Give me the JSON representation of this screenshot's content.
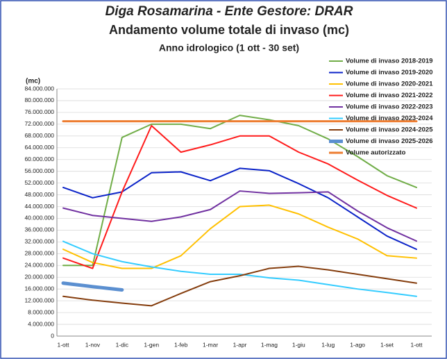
{
  "chart_data": {
    "type": "line",
    "title": "Diga Rosamarina - Ente Gestore: DRAR",
    "subtitle": "Andamento volume totale di invaso (mc)",
    "subtitle2": "Anno idrologico (1 ott - 30 set)",
    "y_label": "(mc)",
    "categories": [
      "1-ott",
      "1-nov",
      "1-dic",
      "1-gen",
      "1-feb",
      "1-mar",
      "1-apr",
      "1-mag",
      "1-giu",
      "1-lug",
      "1-ago",
      "1-set",
      "1-ott"
    ],
    "ylim": [
      0,
      84000000
    ],
    "yticks": [
      0,
      {
        "value": 4000000,
        "label": "4.000.000"
      },
      {
        "value": 8000000,
        "label": "8.000.000"
      },
      {
        "value": 12000000,
        "label": "12.000.000"
      },
      {
        "value": 16000000,
        "label": "16.000.000"
      },
      {
        "value": 20000000,
        "label": "20.000.000"
      },
      {
        "value": 24000000,
        "label": "24.000.000"
      },
      {
        "value": 28000000,
        "label": "28.000.000"
      },
      {
        "value": 32000000,
        "label": "32.000.000"
      },
      {
        "value": 36000000,
        "label": "36.000.000"
      },
      {
        "value": 40000000,
        "label": "40.000.000"
      },
      {
        "value": 44000000,
        "label": "44.000.000"
      },
      {
        "value": 48000000,
        "label": "48.000.000"
      },
      {
        "value": 52000000,
        "label": "52.000.000"
      },
      {
        "value": 56000000,
        "label": "56.000.000"
      },
      {
        "value": 60000000,
        "label": "60.000.000"
      },
      {
        "value": 64000000,
        "label": "64.000.000"
      },
      {
        "value": 68000000,
        "label": "68.000.000"
      },
      {
        "value": 72000000,
        "label": "72.000.000"
      },
      {
        "value": 76000000,
        "label": "76.000.000"
      },
      {
        "value": 80000000,
        "label": "80.000.000"
      },
      {
        "value": 84000000,
        "label": "84.000.000"
      }
    ],
    "grid": true,
    "legend": "upper right",
    "series": [
      {
        "name": "Volume di invaso 2018-2019",
        "color": "#70ad47",
        "width": 2,
        "values": [
          24000000,
          24000000,
          67500000,
          72000000,
          72000000,
          70500000,
          75000000,
          73500000,
          71500000,
          67000000,
          61000000,
          54500000,
          50500000
        ]
      },
      {
        "name": "Volume di invaso 2019-2020",
        "color": "#0a22c8",
        "width": 2,
        "values": [
          50500000,
          47000000,
          49000000,
          55500000,
          55800000,
          52800000,
          57000000,
          56200000,
          51800000,
          47000000,
          40500000,
          34000000,
          29500000
        ]
      },
      {
        "name": "Volume di invaso 2020-2021",
        "color": "#ffc000",
        "width": 2,
        "values": [
          29500000,
          25000000,
          23000000,
          23000000,
          27300000,
          36500000,
          44000000,
          44500000,
          41500000,
          37000000,
          33000000,
          27300000,
          26500000
        ]
      },
      {
        "name": "Volume di invaso 2021-2022",
        "color": "#ff1a1a",
        "width": 2,
        "values": [
          26500000,
          23000000,
          49000000,
          71500000,
          62500000,
          65000000,
          68000000,
          68000000,
          62500000,
          58500000,
          53000000,
          47800000,
          43500000
        ]
      },
      {
        "name": "Volume di invaso 2022-2023",
        "color": "#7030a0",
        "width": 2,
        "values": [
          43500000,
          41000000,
          40000000,
          39000000,
          40500000,
          43000000,
          49300000,
          48500000,
          48700000,
          49000000,
          42500000,
          36800000,
          32300000
        ]
      },
      {
        "name": "Volume di invaso 2023-2024",
        "color": "#33ccff",
        "width": 2,
        "values": [
          32200000,
          28000000,
          25300000,
          23500000,
          22000000,
          21000000,
          21000000,
          19800000,
          19000000,
          17500000,
          16000000,
          14800000,
          13500000
        ]
      },
      {
        "name": "Volume di invaso 2024-2025",
        "color": "#843c0c",
        "width": 2,
        "values": [
          13500000,
          12200000,
          11200000,
          10300000,
          14500000,
          18500000,
          20500000,
          23000000,
          23700000,
          22500000,
          21000000,
          19500000,
          18000000
        ]
      },
      {
        "name": "Volume di invaso 2025-2026",
        "color": "#5b8fd0",
        "width": 5,
        "values": [
          18000000,
          16800000,
          15700000,
          null,
          null,
          null,
          null,
          null,
          null,
          null,
          null,
          null,
          null
        ]
      },
      {
        "name": "Volume autorizzato",
        "color": "#ed7d31",
        "width": 3,
        "values": [
          73000000,
          73000000,
          73000000,
          73000000,
          73000000,
          73000000,
          73000000,
          73000000,
          73000000,
          73000000,
          73000000,
          73000000,
          73000000
        ]
      }
    ]
  }
}
